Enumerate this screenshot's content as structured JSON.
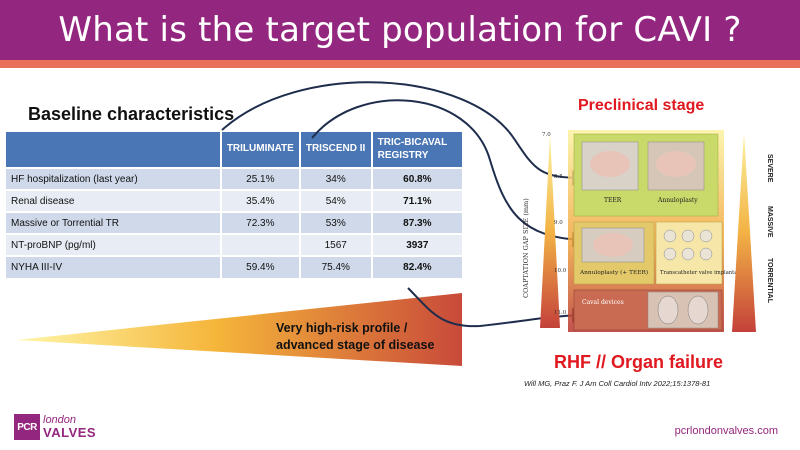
{
  "header": {
    "title": "What is the target population for CAVI ?"
  },
  "baseline": {
    "title": "Baseline characteristics",
    "columns": [
      "TRILUMINATE",
      "TRISCEND II",
      "TRIC-BICAVAL REGISTRY"
    ],
    "rows": [
      {
        "label": "HF hospitalization (last year)",
        "values": [
          "25.1%",
          "34%",
          "60.8%"
        ]
      },
      {
        "label": "Renal disease",
        "values": [
          "35.4%",
          "54%",
          "71.1%"
        ]
      },
      {
        "label": "Massive or Torrential TR",
        "values": [
          "72.3%",
          "53%",
          "87.3%"
        ]
      },
      {
        "label": "NT-proBNP (pg/ml)",
        "values": [
          "",
          "1567",
          "3937"
        ]
      },
      {
        "label": "NYHA III-IV",
        "values": [
          "59.4%",
          "75.4%",
          "82.4%"
        ]
      }
    ]
  },
  "risk": {
    "line1": "Very high-risk profile /",
    "line2": "advanced stage of disease"
  },
  "figure": {
    "stage_top": "Preclinical stage",
    "stage_bottom": "RHF // Organ failure",
    "axis_label": "COAPTATION GAP SIZE (mm)",
    "ticks": [
      "7.0",
      "8.5",
      "9.0",
      "10.0",
      "11.0"
    ],
    "severity": [
      "SEVERE",
      "MASSIVE",
      "TORRENTIAL"
    ],
    "boxes": {
      "teer": "TEER",
      "annuloplasty": "Annuloplasty",
      "annuloplasty_teer": "Annuloplasty (+ TEER)",
      "transcatheter": "Transcatheter valve implantation",
      "caval": "Caval devices"
    },
    "colors": {
      "gradient_top": "#f7e96a",
      "gradient_bottom": "#c0392b",
      "box_green": "#c9d96a"
    }
  },
  "citation": "Will MG, Praz F. J Am Coll Cardiol Intv 2022;15:1378-81",
  "footer": {
    "logo_box": "PCR",
    "logo_london": "london",
    "logo_valves": "VALVES",
    "url": "pcrlondonvalves.com"
  }
}
